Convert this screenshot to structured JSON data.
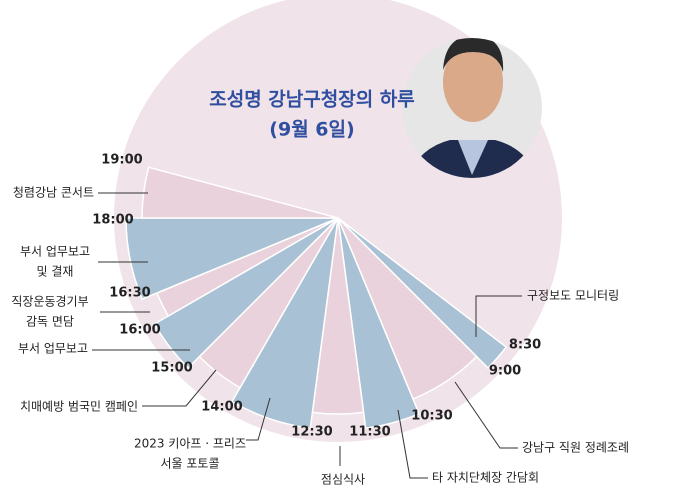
{
  "title": "조성명 강남구청장의 하루",
  "subtitle": "(9월 6일)",
  "schedule": [
    {
      "time": "8:30",
      "event": [
        "구정보도 모니터링"
      ]
    },
    {
      "time": "9:00",
      "event": [
        "강남구 직원 정례조례"
      ]
    },
    {
      "time": "10:30",
      "event": [
        "타 자치단체장 간담회"
      ]
    },
    {
      "time": "11:30",
      "event": [
        "점심식사"
      ]
    },
    {
      "time": "12:30",
      "event": [
        "2023 키아프 · 프리즈",
        "서울 포토콜"
      ]
    },
    {
      "time": "14:00",
      "event": [
        "치매예방 범국민 캠페인"
      ]
    },
    {
      "time": "15:00",
      "event": [
        "부서 업무보고"
      ]
    },
    {
      "time": "16:00",
      "event": [
        "직장운동경기부",
        "감독 면담"
      ]
    },
    {
      "time": "16:30",
      "event": [
        "부서 업무보고",
        "및 결재"
      ]
    },
    {
      "time": "18:00",
      "event": [
        "청렴강남 콘서트"
      ]
    },
    {
      "time": "19:00",
      "event": []
    }
  ]
}
